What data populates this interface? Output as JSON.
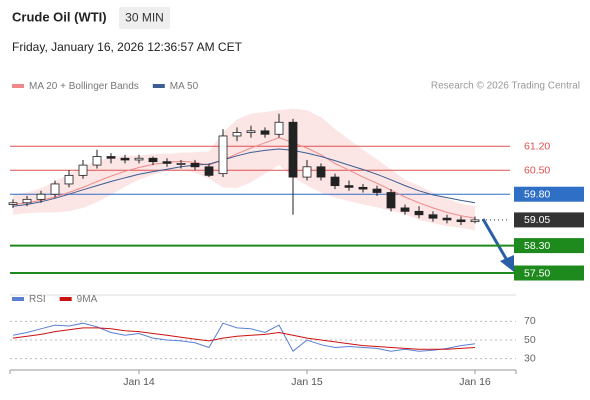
{
  "chart_data": {
    "type": "candlestick",
    "title": "Crude Oil (WTI)",
    "timeframe": "30 MIN",
    "subtitle": "Friday, January 16, 2026 12:36:57 AM CET",
    "source": "Research © 2026 Trading Central",
    "x": [
      -18,
      -16,
      -14,
      -12,
      -10,
      -8,
      -6,
      -4,
      -2,
      0,
      2,
      4,
      6,
      8,
      10,
      12,
      14,
      16,
      18,
      20,
      22,
      24,
      26,
      28,
      30,
      32,
      34,
      36,
      38,
      40,
      42,
      44,
      46,
      48
    ],
    "open": [
      59.5,
      59.55,
      59.65,
      59.8,
      60.1,
      60.35,
      60.65,
      60.9,
      60.85,
      60.8,
      60.85,
      60.75,
      60.7,
      60.7,
      60.6,
      60.4,
      61.5,
      61.6,
      61.65,
      61.55,
      61.9,
      60.3,
      60.6,
      60.3,
      60.05,
      60.0,
      59.95,
      59.85,
      59.4,
      59.3,
      59.2,
      59.1,
      59.05,
      59.0
    ],
    "high": [
      59.65,
      59.75,
      59.9,
      60.2,
      60.5,
      60.8,
      61.1,
      61.0,
      60.95,
      60.95,
      60.9,
      60.85,
      60.8,
      60.8,
      60.7,
      61.7,
      61.75,
      61.8,
      61.75,
      62.15,
      62.0,
      60.8,
      60.7,
      60.4,
      60.2,
      60.1,
      60.05,
      59.95,
      59.5,
      59.45,
      59.3,
      59.2,
      59.15,
      59.15
    ],
    "low": [
      59.4,
      59.45,
      59.55,
      59.7,
      60.0,
      60.25,
      60.55,
      60.7,
      60.7,
      60.7,
      60.65,
      60.6,
      60.55,
      60.5,
      60.3,
      60.3,
      61.35,
      61.45,
      61.45,
      61.45,
      59.2,
      60.2,
      60.2,
      59.95,
      59.9,
      59.85,
      59.75,
      59.3,
      59.2,
      59.1,
      59.0,
      58.95,
      58.9,
      58.95
    ],
    "close": [
      59.55,
      59.65,
      59.8,
      60.1,
      60.35,
      60.65,
      60.9,
      60.85,
      60.8,
      60.85,
      60.75,
      60.7,
      60.7,
      60.6,
      60.35,
      61.5,
      61.6,
      61.65,
      61.55,
      61.9,
      60.3,
      60.6,
      60.3,
      60.05,
      60.0,
      59.95,
      59.85,
      59.4,
      59.3,
      59.2,
      59.1,
      59.05,
      59.0,
      59.05
    ],
    "series": [
      {
        "name": "MA 20 + Bollinger Bands",
        "color": "#f08a8a",
        "values": [
          59.5,
          59.55,
          59.62,
          59.72,
          59.85,
          60.0,
          60.17,
          60.33,
          60.47,
          60.58,
          60.67,
          60.73,
          60.76,
          60.73,
          60.65,
          60.8,
          60.98,
          61.15,
          61.3,
          61.45,
          61.3,
          61.15,
          60.95,
          60.7,
          60.5,
          60.3,
          60.12,
          59.92,
          59.72,
          59.55,
          59.4,
          59.27,
          59.17,
          59.1
        ],
        "upper": [
          59.8,
          59.85,
          59.97,
          60.17,
          60.4,
          60.6,
          60.77,
          60.88,
          60.92,
          60.93,
          60.97,
          60.98,
          61.01,
          61.03,
          61.05,
          61.6,
          61.98,
          62.15,
          62.2,
          62.25,
          62.3,
          62.25,
          62.05,
          61.7,
          61.4,
          61.1,
          60.82,
          60.52,
          60.22,
          60.05,
          59.85,
          59.67,
          59.52,
          59.45
        ],
        "lower": [
          59.2,
          59.25,
          59.27,
          59.27,
          59.3,
          59.4,
          59.57,
          59.78,
          60.02,
          60.23,
          60.37,
          60.48,
          60.51,
          60.43,
          60.25,
          60.0,
          59.98,
          60.15,
          60.4,
          60.65,
          60.3,
          60.05,
          59.85,
          59.7,
          59.6,
          59.5,
          59.42,
          59.32,
          59.22,
          59.05,
          58.95,
          58.87,
          58.82,
          58.75
        ]
      },
      {
        "name": "MA 50",
        "color": "#3c5e94",
        "values": [
          59.45,
          59.5,
          59.58,
          59.68,
          59.8,
          59.93,
          60.05,
          60.17,
          60.28,
          60.38,
          60.46,
          60.53,
          60.6,
          60.65,
          60.68,
          60.8,
          60.92,
          61.02,
          61.08,
          61.12,
          61.08,
          61.0,
          60.9,
          60.78,
          60.65,
          60.52,
          60.38,
          60.22,
          60.05,
          59.9,
          59.78,
          59.7,
          59.62,
          59.55
        ]
      }
    ],
    "levels": [
      {
        "value": 61.2,
        "label": "61.20",
        "color": "#e05050",
        "line": "solid",
        "tag": "text"
      },
      {
        "value": 60.5,
        "label": "60.50",
        "color": "#e05050",
        "line": "solid",
        "tag": "text"
      },
      {
        "value": 59.8,
        "label": "59.80",
        "color": "#2f6fc6",
        "line": "solid",
        "tag": "box"
      },
      {
        "value": 59.05,
        "label": "59.05",
        "color": "#333333",
        "line": "dotted",
        "tag": "box"
      },
      {
        "value": 58.3,
        "label": "58.30",
        "color": "#1e8a1e",
        "line": "thick",
        "tag": "box"
      },
      {
        "value": 57.5,
        "label": "57.50",
        "color": "#1e8a1e",
        "line": "thick",
        "tag": "box"
      }
    ],
    "xlim": [
      -18.43,
      53
    ],
    "ylim": [
      57.15,
      62.55
    ],
    "xticks": [
      {
        "value": 0,
        "label": "Jan 14"
      },
      {
        "value": 24,
        "label": "Jan 15"
      },
      {
        "value": 48,
        "label": "Jan 16"
      }
    ],
    "rsi": {
      "ylim": [
        20,
        80
      ],
      "yticks": [
        70,
        50,
        30
      ],
      "series": [
        {
          "name": "RSI",
          "color": "#5b7fd6",
          "values": [
            55,
            58,
            62,
            66,
            65,
            68,
            64,
            58,
            55,
            57,
            52,
            50,
            49,
            47,
            42,
            68,
            63,
            62,
            58,
            66,
            38,
            50,
            45,
            42,
            43,
            42,
            41,
            38,
            40,
            38,
            39,
            41,
            44,
            46
          ]
        },
        {
          "name": "9MA",
          "color": "#cc1111",
          "values": [
            52,
            54,
            56,
            59,
            61,
            63,
            63,
            62,
            60,
            59,
            57,
            55,
            53,
            51,
            49,
            52,
            54,
            55,
            56,
            58,
            55,
            52,
            50,
            48,
            46,
            44,
            43,
            42,
            41,
            40,
            40,
            40,
            41,
            42
          ]
        }
      ]
    }
  }
}
